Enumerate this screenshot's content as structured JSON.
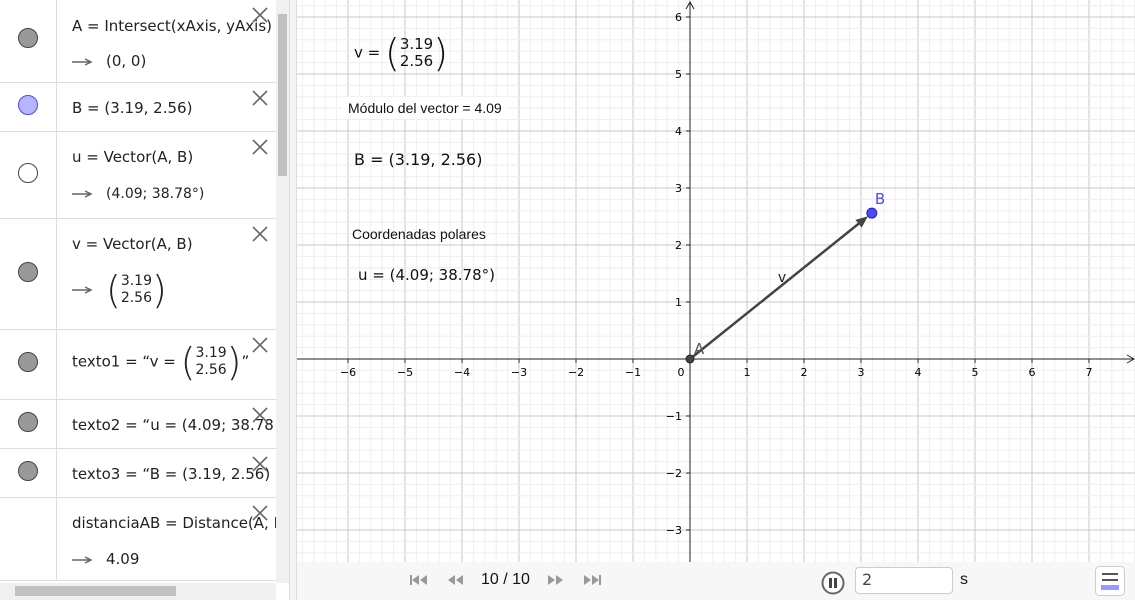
{
  "algebra": [
    {
      "def": "A = Intersect(xAxis, yAxis)",
      "value": "(0, 0)",
      "color": "#999999"
    },
    {
      "def": "B = (3.19, 2.56)",
      "color": "#b5b5ff"
    },
    {
      "def": "u = Vector(A, B)",
      "value": "(4.09; 38.78°)",
      "color": "#ffffff"
    },
    {
      "def": "v = Vector(A, B)",
      "m1": "3.19",
      "m2": "2.56",
      "color": "#999999"
    },
    {
      "pre": "texto1 = “v = ",
      "m1": "3.19",
      "m2": "2.56",
      "post": "”",
      "color": "#999999"
    },
    {
      "def": "texto2 = “u = (4.09; 38.78",
      "color": "#999999"
    },
    {
      "def": "texto3 = “B = (3.19, 2.56)",
      "color": "#999999"
    },
    {
      "def": "distanciaAB = Distance(A, B",
      "value": "4.09"
    }
  ],
  "graphics": {
    "text_v": {
      "label": "v = ",
      "m1": "3.19",
      "m2": "2.56"
    },
    "modulo": "Módulo del vector = 4.09",
    "text_B": "B = (3.19, 2.56)",
    "polares": "Coordenadas polares",
    "text_u": "u = (4.09; 38.78°)",
    "point_A": {
      "label": "A",
      "x": 0,
      "y": 0
    },
    "point_B": {
      "label": "B",
      "x": 3.19,
      "y": 2.56,
      "color": "#4a4aff"
    },
    "vector_label": "v",
    "x_ticks": [
      -6,
      -5,
      -4,
      -3,
      -2,
      -1,
      0,
      1,
      2,
      3,
      4,
      5,
      6,
      7
    ],
    "y_ticks": [
      -3,
      -2,
      -1,
      1,
      2,
      3,
      4,
      5,
      6
    ]
  },
  "player": {
    "step": "10 / 10",
    "speed": "2",
    "unit": "s"
  }
}
